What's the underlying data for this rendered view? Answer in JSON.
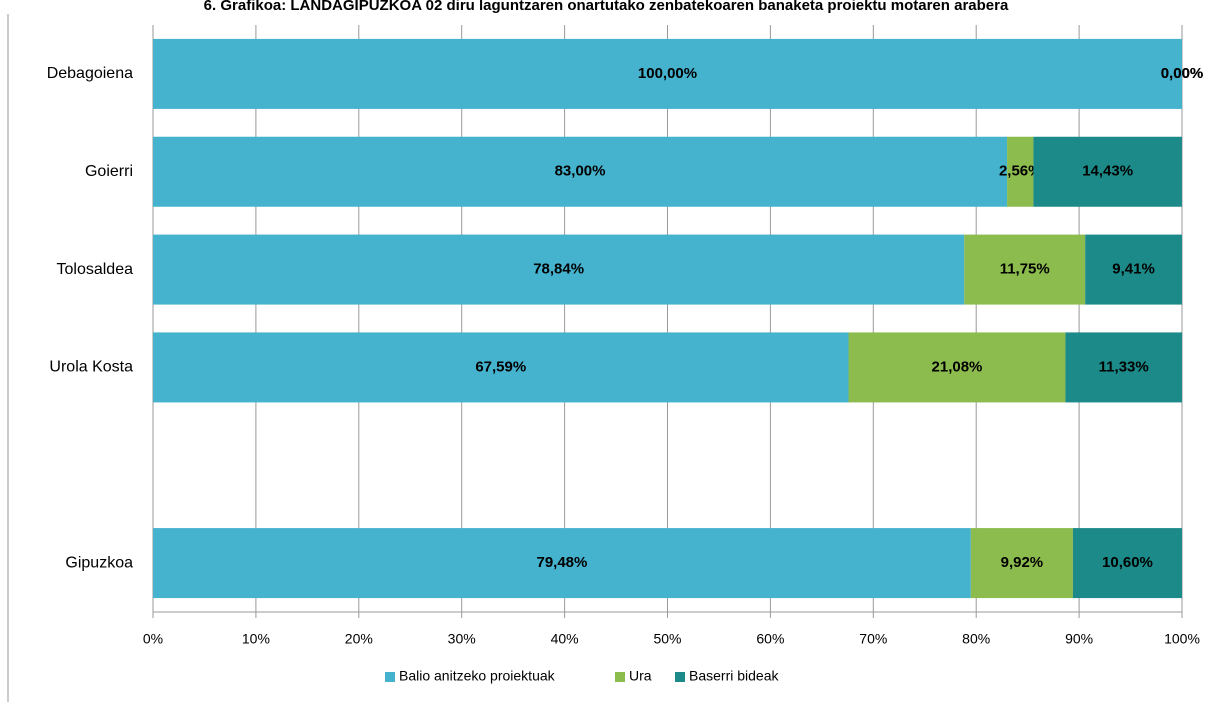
{
  "chart_data": {
    "type": "stacked_barh",
    "title": "6. Grafikoa: LANDAGIPUZKOA 02 diru laguntzaren onartutako zenbatekoaren banaketa proiektu motaren arabera",
    "categories": [
      "Debagoiena",
      "Goierri",
      "Tolosaldea",
      "Urola Kosta",
      null,
      "Gipuzkoa"
    ],
    "series": [
      {
        "name": "Balio anitzeko proiektuak",
        "color": "#45b2ce",
        "values": [
          100,
          83,
          78.84,
          67.59,
          null,
          79.48
        ],
        "value_labels": [
          "100,00%",
          "83,00%",
          "78,84%",
          "67,59%",
          null,
          "79,48%"
        ]
      },
      {
        "name": "Ura",
        "color": "#8cbb4e",
        "values": [
          0,
          2.56,
          11.75,
          21.08,
          null,
          9.92
        ],
        "value_labels": [
          "0,00%",
          "2,56%",
          "11,75%",
          "21,08%",
          null,
          "9,92%"
        ]
      },
      {
        "name": "Baserri bideak",
        "color": "#1c8a89",
        "values": [
          0,
          14.43,
          9.41,
          11.33,
          null,
          10.6
        ],
        "value_labels": [
          "0,00%",
          "14,43%",
          "9,41%",
          "11,33%",
          null,
          "10,60%"
        ]
      }
    ],
    "xlim": [
      0,
      100
    ],
    "xticks": [
      {
        "value": 0,
        "label": "0%"
      },
      {
        "value": 10,
        "label": "10%"
      },
      {
        "value": 20,
        "label": "20%"
      },
      {
        "value": 30,
        "label": "30%"
      },
      {
        "value": 40,
        "label": "40%"
      },
      {
        "value": 50,
        "label": "50%"
      },
      {
        "value": 60,
        "label": "60%"
      },
      {
        "value": 70,
        "label": "70%"
      },
      {
        "value": 80,
        "label": "80%"
      },
      {
        "value": 90,
        "label": "90%"
      },
      {
        "value": 100,
        "label": "100%"
      }
    ],
    "grid": true,
    "legend": "bottom"
  }
}
